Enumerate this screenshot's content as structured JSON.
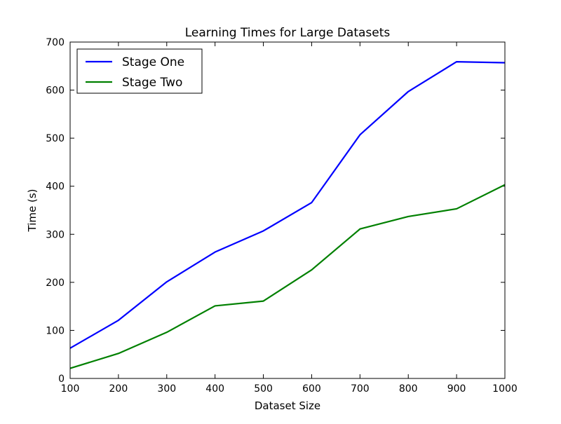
{
  "chart_data": {
    "type": "line",
    "title": "Learning Times for Large Datasets",
    "xlabel": "Dataset Size",
    "ylabel": "Time (s)",
    "x": [
      100,
      200,
      300,
      400,
      500,
      600,
      700,
      800,
      900,
      1000
    ],
    "xlim": [
      100,
      1000
    ],
    "ylim": [
      0,
      700
    ],
    "xticks": [
      100,
      200,
      300,
      400,
      500,
      600,
      700,
      800,
      900,
      1000
    ],
    "yticks": [
      0,
      100,
      200,
      300,
      400,
      500,
      600,
      700
    ],
    "grid": false,
    "legend": {
      "position": "top-left"
    },
    "series": [
      {
        "name": "Stage One",
        "color": "#0000ff",
        "values": [
          63,
          121,
          201,
          263,
          307,
          366,
          507,
          597,
          659,
          657
        ]
      },
      {
        "name": "Stage Two",
        "color": "#008000",
        "values": [
          21,
          52,
          96,
          151,
          161,
          226,
          311,
          337,
          353,
          403
        ]
      }
    ]
  }
}
